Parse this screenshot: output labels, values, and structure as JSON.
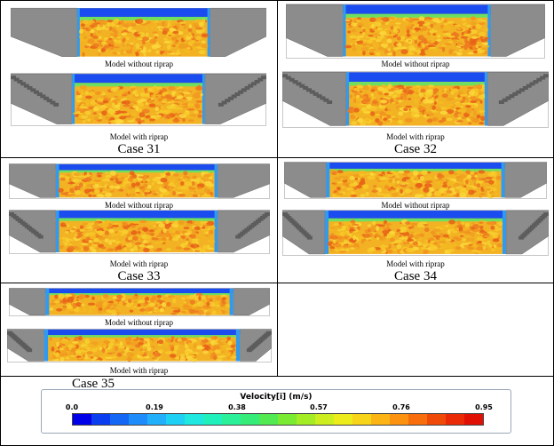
{
  "cases": [
    {
      "label": "Case 31",
      "top_caption": "Model without riprap",
      "bottom_caption": "Model with riprap"
    },
    {
      "label": "Case 32",
      "top_caption": "Model without riprap",
      "bottom_caption": "Model with riprap"
    },
    {
      "label": "Case 33",
      "top_caption": "Model without riprap",
      "bottom_caption": "Model with riprap"
    },
    {
      "label": "Case 34",
      "top_caption": "Model without riprap",
      "bottom_caption": "Model with riprap"
    },
    {
      "label": "Case 35",
      "top_caption": "Model without riprap",
      "bottom_caption": "Model with riprap"
    }
  ],
  "legend": {
    "title": "Velocity[i] (m/s)",
    "ticks": [
      "0.0",
      "0.19",
      "0.38",
      "0.57",
      "0.76",
      "0.95"
    ],
    "tick_values": [
      0.0,
      0.19,
      0.38,
      0.57,
      0.76,
      0.95
    ],
    "colors": [
      "#0000e8",
      "#0a3cf0",
      "#1466f5",
      "#1e8cfa",
      "#22b0fb",
      "#1fd0f5",
      "#1ee8e0",
      "#20f0bc",
      "#2af09a",
      "#36ec78",
      "#52ea50",
      "#7aea32",
      "#a4ec24",
      "#cdee1e",
      "#ecec1a",
      "#f8d418",
      "#fcb414",
      "#fc9210",
      "#f86e0c",
      "#f04a08",
      "#ea2a06",
      "#e01004"
    ]
  }
}
